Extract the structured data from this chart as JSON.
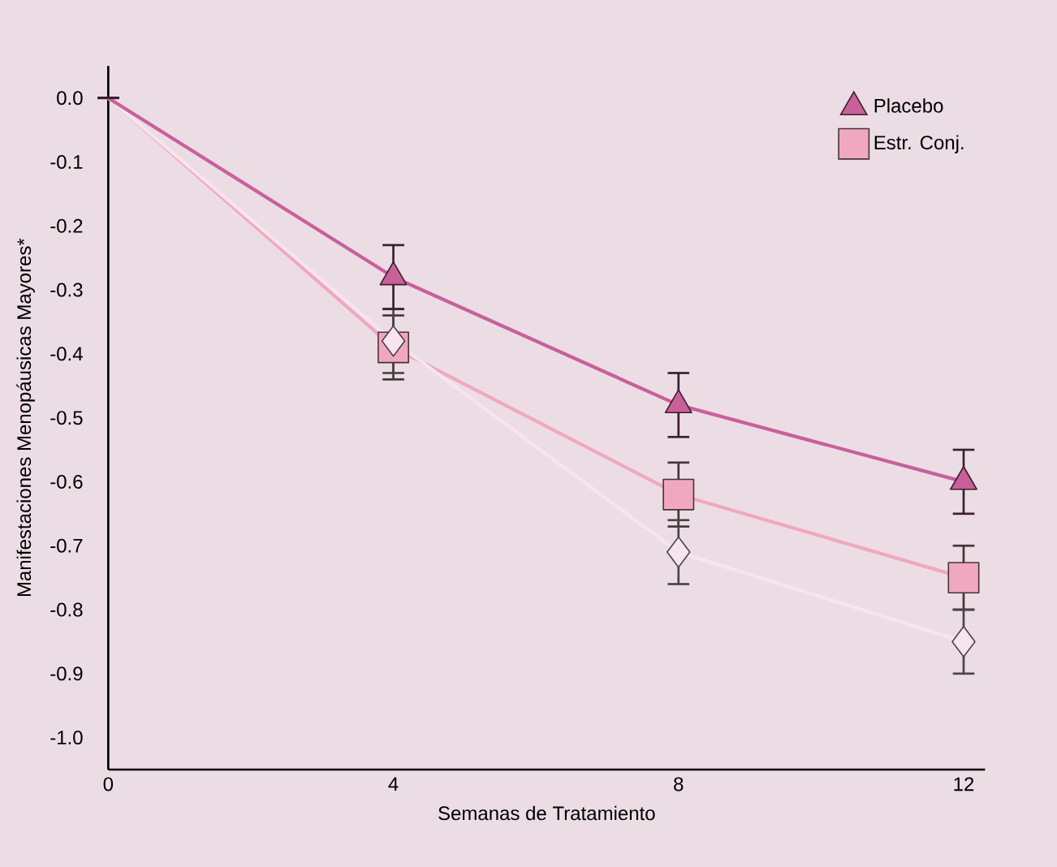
{
  "chart_data": {
    "type": "line",
    "xlabel": "Semanas de Tratamiento",
    "ylabel": "Manifestaciones Menopáusicas Mayores*",
    "x": [
      0,
      4,
      8,
      12
    ],
    "series": [
      {
        "name": "Placebo",
        "color": "#c8609a",
        "marker": "triangle",
        "values": [
          0.0,
          -0.28,
          -0.48,
          -0.6
        ],
        "errors": [
          null,
          0.05,
          0.05,
          0.05
        ]
      },
      {
        "color": "#f8e4ee",
        "marker": "diamond",
        "values": [
          0.0,
          -0.38,
          -0.71,
          -0.85
        ],
        "errors": [
          null,
          0.05,
          0.05,
          0.05
        ]
      },
      {
        "name": "Estr. Conj.",
        "color": "#f0a8c0",
        "marker": "square",
        "values": [
          0.0,
          -0.39,
          -0.62,
          -0.75
        ],
        "errors": [
          null,
          0.05,
          0.05,
          0.05
        ]
      }
    ],
    "xlim": [
      0,
      12.3
    ],
    "xticks": [
      0,
      4,
      8,
      12
    ],
    "ylim": [
      -1.05,
      0.05
    ],
    "yticks": [
      {
        "value": 0,
        "label": "0.0"
      },
      -0.1,
      -0.2,
      -0.3,
      -0.4,
      -0.5,
      -0.6,
      -0.7,
      -0.8,
      -0.9,
      {
        "value": -1,
        "label": "-1.0"
      }
    ],
    "grid": false,
    "legend": "top right"
  }
}
